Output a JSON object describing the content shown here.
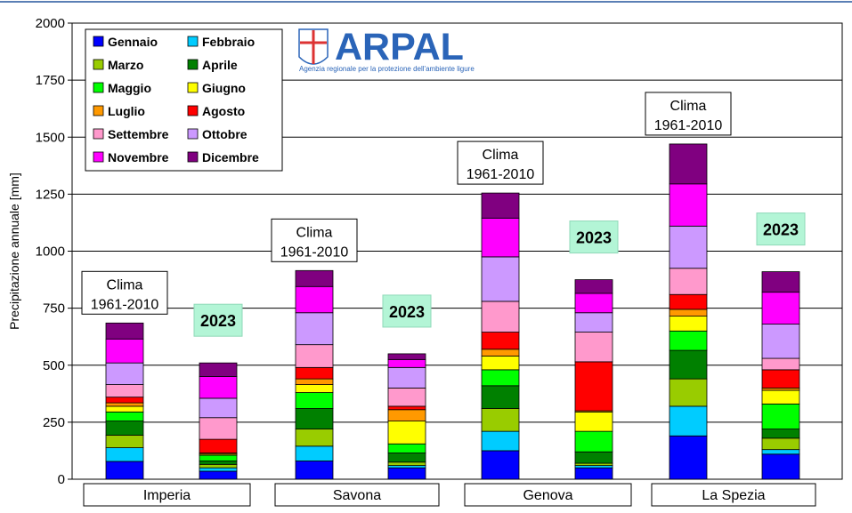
{
  "chart_data": {
    "type": "bar",
    "stacked": true,
    "ylabel": "Precipitazione annuale [mm]",
    "ylim": [
      0,
      2000
    ],
    "yticks": [
      0,
      250,
      500,
      750,
      1000,
      1250,
      1500,
      1750,
      2000
    ],
    "grid": true,
    "legend_position": "top-left",
    "groups": [
      "Imperia",
      "Savona",
      "Genova",
      "La Spezia"
    ],
    "bar_labels": {
      "clima_line1": "Clima",
      "clima_line2": "1961-2010",
      "year": "2023"
    },
    "months": [
      {
        "name": "Gennaio",
        "color": "#0000ff"
      },
      {
        "name": "Febbraio",
        "color": "#00ccff"
      },
      {
        "name": "Marzo",
        "color": "#99cc00"
      },
      {
        "name": "Aprile",
        "color": "#008000"
      },
      {
        "name": "Maggio",
        "color": "#00ff00"
      },
      {
        "name": "Giugno",
        "color": "#ffff00"
      },
      {
        "name": "Luglio",
        "color": "#ff9900"
      },
      {
        "name": "Agosto",
        "color": "#ff0000"
      },
      {
        "name": "Settembre",
        "color": "#ff99cc"
      },
      {
        "name": "Ottobre",
        "color": "#cc99ff"
      },
      {
        "name": "Novembre",
        "color": "#ff00ff"
      },
      {
        "name": "Dicembre",
        "color": "#800080"
      }
    ],
    "bars": [
      {
        "group": "Imperia",
        "kind": "clima",
        "values": [
          78,
          60,
          55,
          62,
          40,
          25,
          15,
          25,
          55,
          95,
          105,
          70
        ]
      },
      {
        "group": "Imperia",
        "kind": "2023",
        "values": [
          35,
          15,
          15,
          15,
          25,
          5,
          5,
          60,
          95,
          85,
          95,
          60
        ]
      },
      {
        "group": "Savona",
        "kind": "clima",
        "values": [
          80,
          65,
          75,
          90,
          70,
          35,
          25,
          50,
          100,
          140,
          115,
          70
        ]
      },
      {
        "group": "Savona",
        "kind": "2023",
        "values": [
          50,
          10,
          15,
          40,
          40,
          100,
          50,
          15,
          80,
          90,
          35,
          25
        ]
      },
      {
        "group": "Genova",
        "kind": "clima",
        "values": [
          125,
          85,
          100,
          100,
          70,
          60,
          30,
          75,
          135,
          195,
          170,
          110
        ]
      },
      {
        "group": "Genova",
        "kind": "2023",
        "values": [
          50,
          10,
          10,
          50,
          90,
          85,
          5,
          215,
          130,
          85,
          85,
          60
        ]
      },
      {
        "group": "La Spezia",
        "kind": "clima",
        "values": [
          190,
          130,
          120,
          125,
          85,
          65,
          30,
          65,
          115,
          185,
          185,
          175
        ]
      },
      {
        "group": "La Spezia",
        "kind": "2023",
        "values": [
          110,
          20,
          50,
          40,
          110,
          60,
          10,
          80,
          50,
          150,
          140,
          90
        ]
      }
    ]
  },
  "logo": {
    "name": "ARPAL",
    "tagline": "Agenzia regionale per la protezione dell'ambiente ligure"
  },
  "colors": {
    "frame": "#000000",
    "label_box": "#ffffff",
    "year_box": "#b3f5d6",
    "logo": "#2a64b8"
  }
}
